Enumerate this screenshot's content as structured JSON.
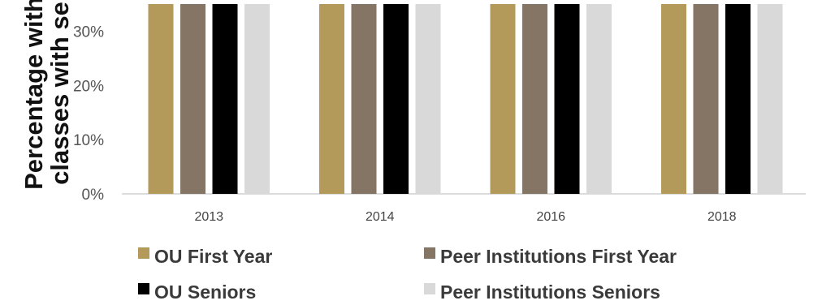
{
  "chart_data": {
    "type": "bar",
    "categories": [
      "2013",
      "2014",
      "2016",
      "2018"
    ],
    "ylabel_lines": [
      "Percentage with",
      "classes with se"
    ],
    "y_ticks": [
      "0%",
      "10%",
      "20%",
      "30%"
    ],
    "ylim": [
      0,
      0.35
    ],
    "legend_position": "bottom",
    "grid": false,
    "series": [
      {
        "name": "OU First Year",
        "color": "#b49a5a",
        "values": [
          0.35,
          0.35,
          0.35,
          0.35
        ]
      },
      {
        "name": "Peer Institutions First Year",
        "color": "#857565",
        "values": [
          0.35,
          0.35,
          0.35,
          0.35
        ]
      },
      {
        "name": "OU Seniors",
        "color": "#000000",
        "values": [
          0.35,
          0.35,
          0.35,
          0.35
        ]
      },
      {
        "name": "Peer Institutions Seniors",
        "color": "#d9d9d9",
        "values": [
          0.35,
          0.35,
          0.35,
          0.35
        ]
      }
    ]
  }
}
